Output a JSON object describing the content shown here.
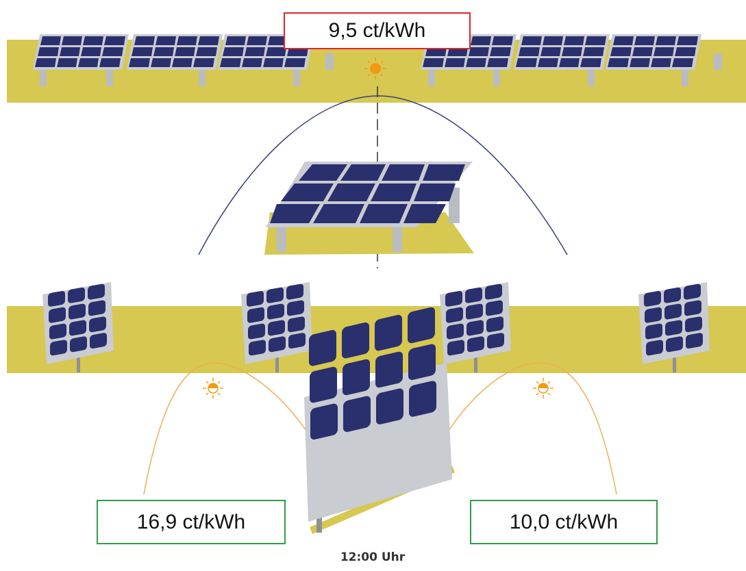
{
  "labels": {
    "price_horizontal": "9,5 ct/kWh",
    "price_vertical_east": "16,9 ct/kWh",
    "price_vertical_west": "10,0 ct/kWh",
    "time": "12:00 Uhr"
  },
  "colors": {
    "ground": "#d6c850",
    "panel_cell": "#2a2f6e",
    "panel_frame": "#c9ccd0",
    "stand": "#b9bcc1",
    "curve_horizontal": "#3b3f7a",
    "curve_vertical": "#eeae54",
    "sun": "#f39a12",
    "border_horizontal_price": "#e0242b",
    "border_vertical_price": "#2e9e47"
  },
  "icons": {
    "sun_horizontal": "sun-icon",
    "sun_vertical": "half-sun-icon"
  }
}
